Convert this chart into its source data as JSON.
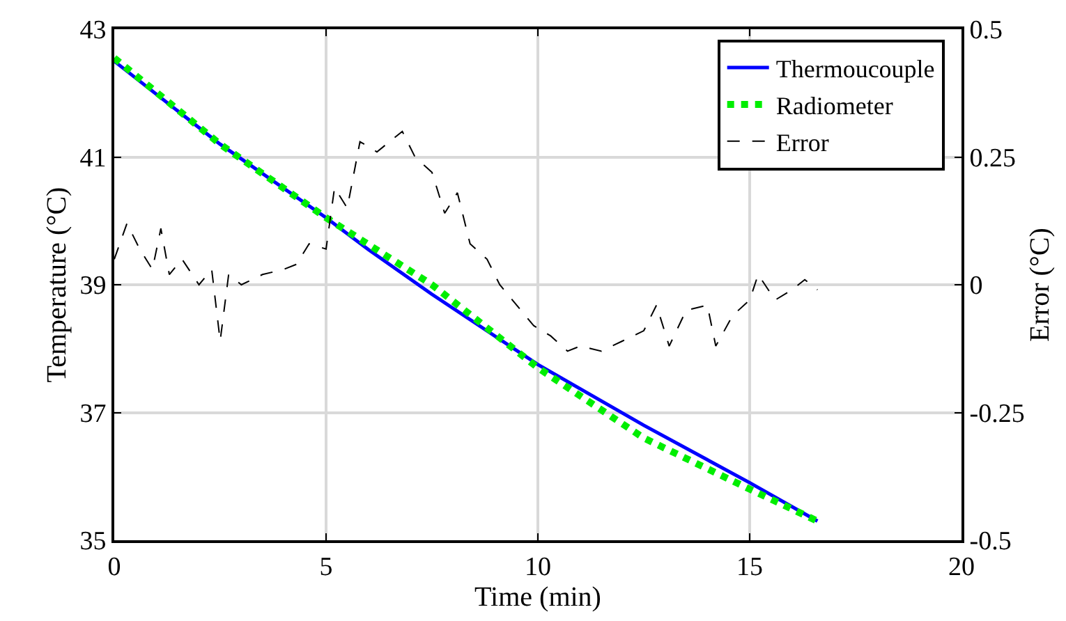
{
  "chart_data": {
    "type": "line",
    "xlabel": "Time (min)",
    "ylabel": "Temperature (°C)",
    "y2label": "Error (°C)",
    "xlim": [
      0,
      20
    ],
    "xticks": [
      0,
      5,
      10,
      15,
      20
    ],
    "ylim": [
      35,
      43
    ],
    "yticks": [
      35,
      37,
      39,
      41,
      43
    ],
    "y2lim": [
      -0.5,
      0.5
    ],
    "y2ticks": [
      -0.5,
      -0.25,
      0,
      0.25,
      0.5
    ],
    "grid": true,
    "legend": "top right",
    "series": [
      {
        "name": "Thermoucouple",
        "color": "#0000ff",
        "line_style": "solid",
        "x": [
          0,
          2.5,
          5,
          6,
          7.5,
          10,
          12.5,
          15,
          16.6
        ],
        "values": [
          42.5,
          41.2,
          40.05,
          39.55,
          38.85,
          37.75,
          36.8,
          35.9,
          35.3
        ]
      },
      {
        "name": "Radiometer",
        "color": "#00ee00",
        "line_style": "dotted",
        "x": [
          0,
          2.5,
          5,
          7.5,
          10,
          12.5,
          15,
          16.6
        ],
        "values": [
          42.55,
          41.2,
          40.05,
          39.0,
          37.7,
          36.6,
          35.8,
          35.3
        ]
      },
      {
        "name": "Error",
        "color": "#000000",
        "line_style": "dashed",
        "axis": "y2",
        "x": [
          0,
          0.3,
          0.6,
          0.9,
          1.1,
          1.3,
          1.6,
          2.0,
          2.3,
          2.5,
          2.7,
          3.0,
          3.5,
          4.0,
          4.3,
          4.6,
          5.0,
          5.2,
          5.5,
          5.8,
          6.2,
          6.5,
          6.8,
          7.1,
          7.5,
          7.8,
          8.1,
          8.4,
          8.8,
          9.1,
          9.5,
          9.9,
          10.3,
          10.7,
          11.0,
          11.5,
          12.0,
          12.5,
          12.8,
          13.1,
          13.5,
          14.0,
          14.2,
          14.6,
          15.0,
          15.2,
          15.6,
          16.0,
          16.3,
          16.6
        ],
        "values": [
          0.05,
          0.12,
          0.07,
          0.03,
          0.11,
          0.02,
          0.05,
          0.0,
          0.03,
          -0.11,
          0.02,
          0.0,
          0.02,
          0.03,
          0.04,
          0.08,
          0.07,
          0.19,
          0.15,
          0.28,
          0.26,
          0.28,
          0.3,
          0.25,
          0.22,
          0.14,
          0.18,
          0.08,
          0.05,
          0.0,
          -0.04,
          -0.08,
          -0.1,
          -0.13,
          -0.12,
          -0.13,
          -0.11,
          -0.09,
          -0.04,
          -0.12,
          -0.05,
          -0.04,
          -0.12,
          -0.06,
          -0.03,
          0.02,
          -0.03,
          -0.01,
          0.01,
          -0.01
        ]
      }
    ]
  }
}
